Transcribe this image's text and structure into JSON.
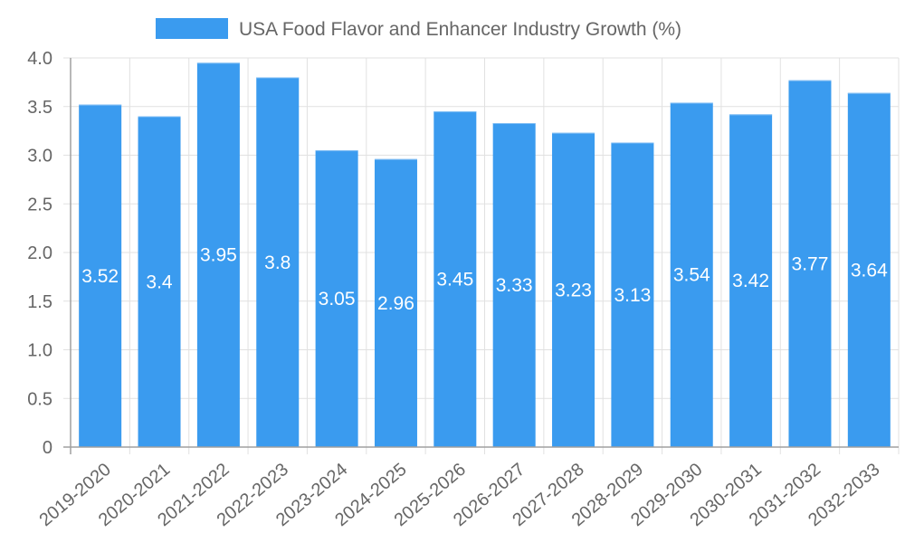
{
  "chart_data": {
    "type": "bar",
    "title": "",
    "legend": {
      "position": "top",
      "entries": [
        {
          "label": "USA Food Flavor and Enhancer Industry Growth (%)",
          "color": "#3a9bef"
        }
      ]
    },
    "xlabel": "",
    "ylabel": "",
    "ylim": [
      0,
      4.0
    ],
    "yticks": [
      "0",
      "0.5",
      "1.0",
      "1.5",
      "2.0",
      "2.5",
      "3.0",
      "3.5",
      "4.0"
    ],
    "ytick_values": [
      0,
      0.5,
      1.0,
      1.5,
      2.0,
      2.5,
      3.0,
      3.5,
      4.0
    ],
    "grid": true,
    "categories": [
      "2019-2020",
      "2020-2021",
      "2021-2022",
      "2022-2023",
      "2023-2024",
      "2024-2025",
      "2025-2026",
      "2026-2027",
      "2027-2028",
      "2028-2029",
      "2029-2030",
      "2030-2031",
      "2031-2032",
      "2032-2033"
    ],
    "series": [
      {
        "name": "USA Food Flavor and Enhancer Industry Growth (%)",
        "color": "#3a9bef",
        "values": [
          3.52,
          3.4,
          3.95,
          3.8,
          3.05,
          2.96,
          3.45,
          3.33,
          3.23,
          3.13,
          3.54,
          3.42,
          3.77,
          3.64
        ],
        "data_labels": [
          "3.52",
          "3.4",
          "3.95",
          "3.8",
          "3.05",
          "2.96",
          "3.45",
          "3.33",
          "3.23",
          "3.13",
          "3.54",
          "3.42",
          "3.77",
          "3.64"
        ]
      }
    ]
  }
}
